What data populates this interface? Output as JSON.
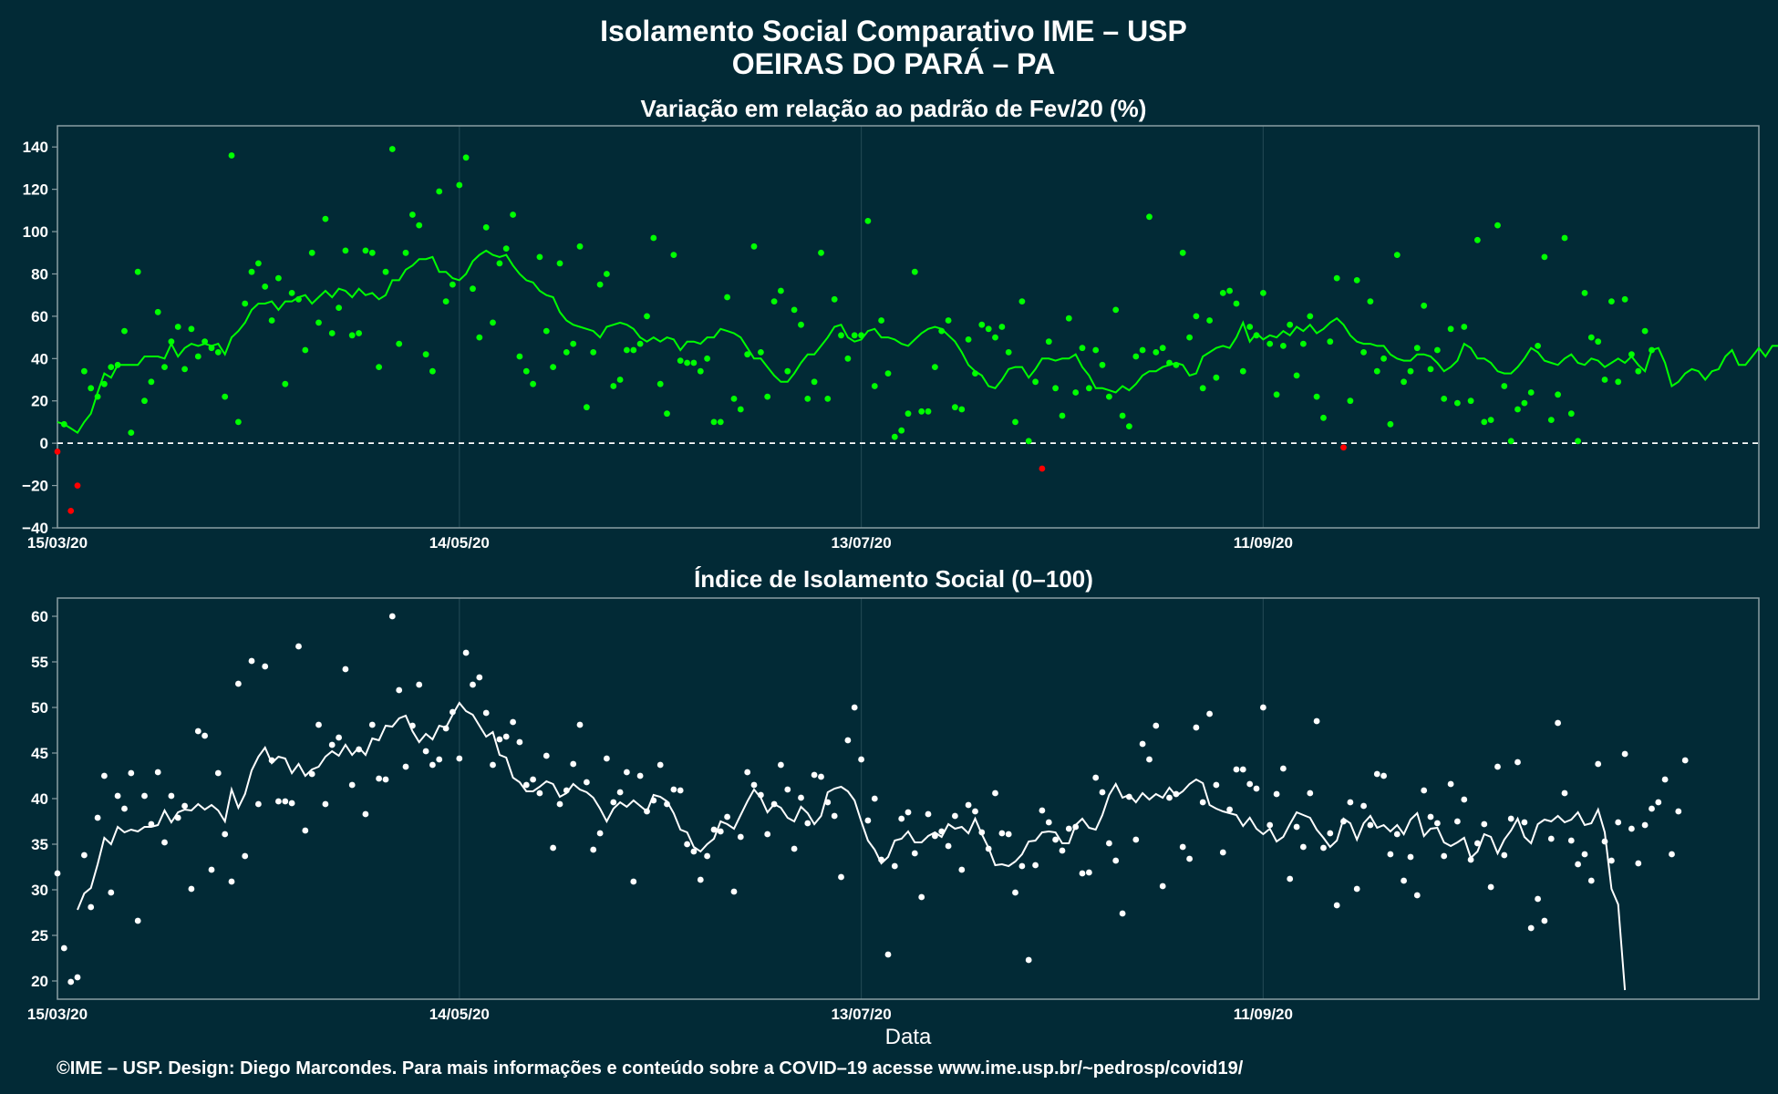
{
  "header": {
    "title_line1": "Isolamento Social Comparativo IME – USP",
    "title_line2": "OEIRAS DO PARÁ – PA"
  },
  "footer": {
    "credit": "©IME – USP. Design: Diego Marcondes. Para mais informações e conteúdo sobre a COVID–19 acesse www.ime.usp.br/~pedrosp/covid19/"
  },
  "colors": {
    "background": "#022a36",
    "panel_border": "#8a9ea3",
    "grid": "#1f4651",
    "positive_points": "#00ff00",
    "negative_points": "#ff0000",
    "index_points": "#ffffff",
    "text": "#ffffff"
  },
  "chart_data": [
    {
      "type": "scatter",
      "title": "Variação em relação ao padrão de Fev/20 (%)",
      "xlabel": "",
      "ylabel": "",
      "x_start": "15/03/20",
      "x_end": "24/11/20",
      "xticks": [
        "15/03/20",
        "14/05/20",
        "13/07/20",
        "11/09/20"
      ],
      "ylim": [
        -40,
        150
      ],
      "yticks": [
        -40,
        -20,
        0,
        20,
        40,
        60,
        80,
        100,
        120,
        140
      ],
      "reference_line": 0,
      "grid": true,
      "legend": "none",
      "point_color_rule": "green if value >= 0, red if value < 0",
      "series": [
        {
          "kind": "points",
          "values": [
            -4,
            9,
            -32,
            -20,
            34,
            26,
            22,
            28,
            36,
            37,
            53,
            5,
            81,
            20,
            29,
            62,
            36,
            48,
            55,
            35,
            54,
            41,
            48,
            45,
            43,
            22,
            136,
            10,
            66,
            81,
            85,
            74,
            58,
            78,
            28,
            71,
            68,
            44,
            90,
            57,
            106,
            52,
            64,
            91,
            51,
            52,
            91,
            90,
            36,
            81,
            139,
            47,
            90,
            108,
            103,
            42,
            34,
            119,
            67,
            75,
            122,
            135,
            73,
            50,
            102,
            57,
            85,
            92,
            108,
            41,
            34,
            28,
            88,
            53,
            36,
            85,
            43,
            47,
            93,
            17,
            43,
            75,
            80,
            27,
            30,
            44,
            44,
            47,
            60,
            97,
            28,
            14,
            89,
            39,
            38,
            38,
            34,
            40,
            10,
            10,
            69,
            21,
            16,
            42,
            93,
            43,
            22,
            67,
            72,
            34,
            63,
            56,
            21,
            29,
            90,
            21,
            68,
            51,
            40,
            51,
            51,
            105,
            27,
            58,
            33,
            3,
            6,
            14,
            81,
            15,
            15,
            36,
            53,
            58,
            17,
            16,
            49,
            33,
            56,
            54,
            50,
            55,
            43,
            10,
            67,
            1,
            29,
            -12,
            48,
            26,
            13,
            59,
            24,
            45,
            26,
            44,
            37,
            22,
            63,
            13,
            8,
            41,
            44,
            107,
            43,
            45,
            38,
            37,
            90,
            50,
            60,
            26,
            58,
            31,
            71,
            72,
            66,
            34,
            55,
            51,
            71,
            47,
            23,
            46,
            56,
            32,
            47,
            60,
            22,
            12,
            48,
            78,
            -2,
            20,
            77,
            43,
            67,
            34,
            40,
            9,
            89,
            29,
            34,
            45,
            65,
            35,
            44,
            21,
            54,
            19,
            55,
            20,
            96,
            10,
            11,
            103,
            27,
            1,
            16,
            19,
            24,
            46,
            88,
            11,
            23,
            97,
            14,
            1,
            71,
            50,
            48,
            30,
            67,
            29,
            68,
            42,
            34,
            53,
            44
          ]
        },
        {
          "kind": "line",
          "name": "",
          "values": [
            10,
            9,
            7,
            5,
            10,
            14,
            24,
            33,
            31,
            37,
            37,
            37,
            37,
            41,
            41,
            41,
            40,
            47,
            41,
            45,
            47,
            46,
            47,
            46,
            47,
            42,
            50,
            53,
            57,
            63,
            66,
            66,
            67,
            63,
            67,
            67,
            69,
            70,
            66,
            69,
            72,
            69,
            73,
            72,
            69,
            73,
            70,
            71,
            68,
            70,
            77,
            77,
            82,
            84,
            87,
            87,
            88,
            81,
            81,
            78,
            77,
            80,
            86,
            89,
            91,
            89,
            88,
            89,
            84,
            80,
            77,
            76,
            72,
            70,
            69,
            62,
            58,
            56,
            55,
            54,
            53,
            50,
            55,
            56,
            57,
            56,
            54,
            50,
            48,
            50,
            48,
            50,
            49,
            44,
            48,
            48,
            47,
            50,
            50,
            54,
            53,
            52,
            50,
            45,
            40,
            40,
            36,
            32,
            29,
            29,
            33,
            38,
            42,
            42,
            46,
            50,
            55,
            56,
            50,
            48,
            49,
            53,
            54,
            50,
            50,
            49,
            47,
            46,
            49,
            52,
            54,
            55,
            54,
            51,
            48,
            43,
            37,
            34,
            32,
            27,
            26,
            30,
            35,
            36,
            36,
            31,
            35,
            40,
            40,
            39,
            40,
            40,
            42,
            36,
            32,
            26,
            26,
            25,
            24,
            27,
            25,
            28,
            32,
            34,
            34,
            36,
            37,
            38,
            37,
            32,
            33,
            41,
            43,
            45,
            46,
            45,
            50,
            57,
            48,
            52,
            49,
            51,
            50,
            53,
            51,
            55,
            53,
            56,
            52,
            54,
            57,
            59,
            56,
            51,
            48,
            47,
            47,
            46,
            46,
            42,
            40,
            39,
            39,
            42,
            42,
            41,
            38,
            34,
            36,
            39,
            47,
            45,
            40,
            40,
            38,
            34,
            33,
            33,
            36,
            40,
            45,
            43,
            39,
            38,
            37,
            40,
            42,
            38,
            37,
            40,
            39,
            36,
            38,
            40,
            38,
            41,
            37,
            34,
            44,
            45,
            38,
            27,
            29,
            33,
            35,
            34,
            30,
            34,
            35,
            41,
            44,
            37,
            37,
            41,
            45,
            41,
            46,
            46,
            41,
            44,
            52,
            48,
            46,
            46,
            46,
            48
          ]
        }
      ]
    },
    {
      "type": "scatter",
      "title": "Índice de Isolamento Social (0–100)",
      "xlabel": "Data",
      "ylabel": "",
      "x_start": "15/03/20",
      "x_end": "24/11/20",
      "xticks": [
        "15/03/20",
        "14/05/20",
        "13/07/20",
        "11/09/20"
      ],
      "ylim": [
        18,
        62
      ],
      "yticks": [
        20,
        25,
        30,
        35,
        40,
        45,
        50,
        55,
        60
      ],
      "grid": true,
      "legend": "none",
      "series": [
        {
          "kind": "points",
          "values": [
            31.8,
            23.6,
            19.9,
            20.4,
            33.8,
            28.1,
            37.9,
            42.5,
            29.7,
            40.3,
            38.9,
            42.8,
            26.6,
            40.3,
            37.2,
            42.9,
            35.2,
            40.3,
            37.9,
            39.2,
            30.1,
            47.4,
            46.9,
            32.2,
            42.8,
            36.1,
            30.9,
            52.6,
            33.7,
            55.1,
            39.4,
            54.5,
            44.2,
            39.7,
            39.7,
            39.5,
            56.7,
            36.5,
            42.7,
            48.1,
            39.4,
            45.9,
            46.7,
            54.2,
            41.5,
            45.4,
            38.3,
            48.1,
            42.2,
            42.1,
            60,
            51.9,
            43.5,
            48,
            52.5,
            45.2,
            43.7,
            44.3,
            47.7,
            49.5,
            44.4,
            56,
            52.5,
            53.3,
            49.4,
            43.7,
            46.5,
            46.8,
            48.4,
            46.2,
            41.5,
            42.1,
            40.6,
            44.7,
            34.6,
            39.4,
            40.9,
            43.8,
            48.1,
            41.8,
            34.4,
            36.2,
            44.4,
            39.6,
            40.7,
            42.9,
            30.9,
            42.5,
            38.6,
            39.8,
            43.7,
            39.4,
            41,
            40.9,
            35,
            34.2,
            31.1,
            33.7,
            36.6,
            36.4,
            38,
            29.8,
            35.8,
            42.9,
            41.5,
            40.4,
            36.1,
            39.4,
            43.7,
            41,
            34.5,
            40.1,
            37.3,
            42.6,
            42.4,
            39.6,
            38.1,
            31.4,
            46.4,
            50,
            44.3,
            37.6,
            40,
            33.3,
            22.9,
            32.6,
            37.8,
            38.5,
            34,
            29.2,
            38.3,
            35.9,
            36.4,
            34.8,
            38.1,
            32.2,
            39.3,
            38.6,
            36.3,
            34.5,
            40.6,
            36.2,
            36.1,
            29.7,
            32.6,
            22.3,
            32.7,
            38.7,
            37.4,
            35.5,
            34.3,
            36.7,
            36.9,
            31.8,
            31.9,
            42.3,
            40.7,
            35.1,
            33.2,
            27.4,
            40.2,
            35.5,
            46,
            44.3,
            48,
            30.4,
            40.1,
            40.5,
            34.7,
            33.4,
            47.8,
            39.6,
            49.3,
            41.5,
            34.1,
            38.8,
            43.2,
            43.2,
            41.6,
            41.1,
            50,
            37.1,
            40.5,
            43.3,
            31.2,
            36.9,
            34.7,
            40.6,
            48.5,
            34.6,
            36.2,
            28.3,
            37.5,
            39.6,
            30.1,
            39.2,
            37.1,
            42.7,
            42.5,
            33.9,
            36.1,
            31,
            33.6,
            29.4,
            40.9,
            38,
            37.3,
            33.7,
            41.6,
            37.5,
            39.9,
            33.3,
            35.1,
            37.2,
            30.3,
            43.5,
            33.8,
            37.8,
            44,
            37.4,
            25.8,
            29,
            26.6,
            35.6,
            48.3,
            40.6,
            35.4,
            32.8,
            33.9,
            31,
            43.8,
            35.3,
            33.2,
            37.4,
            44.9,
            36.7,
            32.9,
            37.1,
            38.9,
            39.6,
            42.1,
            33.9,
            38.6,
            44.2
          ]
        },
        {
          "kind": "line",
          "name": "",
          "values": [
            null,
            null,
            null,
            27.8,
            29.6,
            30.2,
            32.8,
            35.7,
            35,
            36.9,
            36.3,
            36.6,
            36.4,
            36.9,
            36.9,
            37.1,
            38.7,
            37.4,
            38.5,
            38.8,
            38.7,
            39.4,
            38.8,
            39.3,
            38.7,
            37.5,
            41,
            39,
            40.5,
            43.1,
            44.6,
            45.6,
            43.9,
            44.6,
            44.4,
            42.8,
            43.8,
            42.5,
            43.2,
            43.5,
            44.6,
            45.2,
            44.7,
            45.9,
            44.8,
            45.6,
            44.8,
            46.6,
            46.4,
            48,
            47.9,
            48.8,
            49.1,
            47.4,
            46.2,
            47.1,
            46.5,
            48,
            47.8,
            49.2,
            50.5,
            49.6,
            49.2,
            48,
            46.8,
            47.3,
            44.8,
            44.5,
            42.3,
            41.8,
            40.8,
            40.8,
            41.3,
            41.9,
            41.6,
            40.2,
            40.6,
            41.6,
            41,
            40.7,
            40.1,
            38.9,
            37.5,
            38.9,
            39.6,
            39.1,
            39.8,
            39.2,
            38.6,
            40.4,
            40.2,
            39.7,
            38.4,
            36.6,
            36.3,
            34.7,
            34.2,
            35,
            35.6,
            37.5,
            37.2,
            36.7,
            38.2,
            39.7,
            41,
            40.1,
            38.5,
            39.4,
            39,
            37.9,
            37.5,
            39.1,
            38.4,
            37.2,
            38.1,
            40.7,
            41.1,
            41.3,
            40.8,
            39.8,
            37.5,
            35.4,
            34.4,
            32.9,
            33.6,
            35.4,
            35.6,
            36.4,
            35.2,
            35.2,
            35.9,
            36.3,
            35.8,
            37.2,
            36.7,
            36.9,
            36.2,
            37.8,
            36.1,
            34.6,
            32.7,
            32.8,
            32.6,
            33.1,
            33.9,
            35.3,
            35.4,
            36.3,
            36.4,
            36.3,
            35.1,
            35.1,
            37.1,
            37.8,
            36.8,
            36.6,
            38.2,
            40.4,
            41.6,
            40.1,
            40.4,
            39.6,
            40.6,
            39.9,
            40.5,
            40.1,
            41.2,
            40.3,
            40.8,
            41.6,
            42.1,
            41.7,
            39.3,
            38.9,
            38.6,
            38.4,
            38.2,
            37,
            37.9,
            36.7,
            36.1,
            36.7,
            35.3,
            35.8,
            37.2,
            38.5,
            38.2,
            37.9,
            36.6,
            35.7,
            34.7,
            35.4,
            37.8,
            37.3,
            35.5,
            37.3,
            38.1,
            36.8,
            37.1,
            36.4,
            37.1,
            36.1,
            37.7,
            38.4,
            35.9,
            36.7,
            36.8,
            35.2,
            34.8,
            35.2,
            35.7,
            33.5,
            34.2,
            36.1,
            35.8,
            34,
            35.5,
            36.5,
            37.8,
            35.8,
            35.1,
            37.2,
            37.7,
            37.5,
            38.1,
            37.4,
            37.7,
            38.5,
            37.1,
            37.3,
            38.8,
            36.3,
            30.1,
            28.4,
            19
          ]
        }
      ]
    }
  ]
}
